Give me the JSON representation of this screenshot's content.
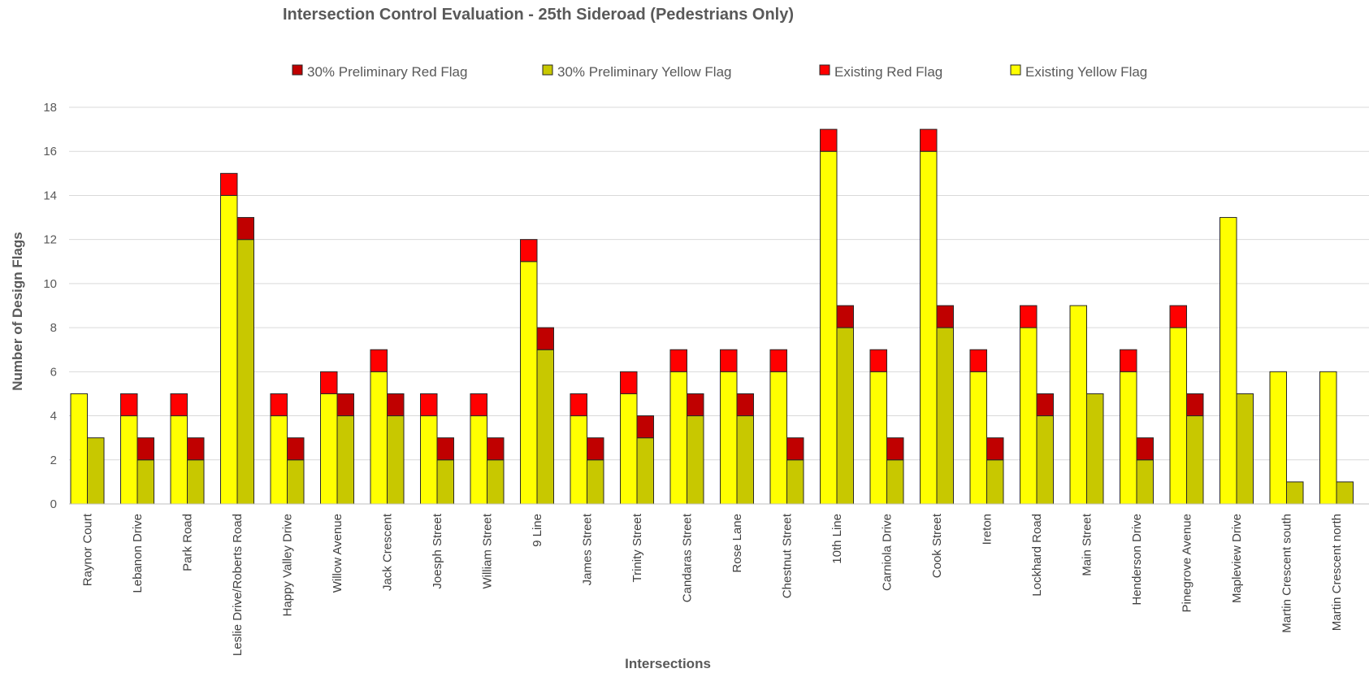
{
  "chart_data": {
    "type": "bar",
    "stacked": true,
    "title": "Intersection Control Evaluation - 25th Sideroad (Pedestrians Only)",
    "xlabel": "Intersections",
    "ylabel": "Number of Design Flags",
    "ylim": [
      0,
      18
    ],
    "yticks": [
      0,
      2,
      4,
      6,
      8,
      10,
      12,
      14,
      16,
      18
    ],
    "grid": true,
    "legend_position": "top",
    "categories": [
      "Raynor Court",
      "Lebanon Drive",
      "Park Road",
      "Leslie Drive/Roberts Road",
      "Happy Valley Drive",
      "Willow Avenue",
      "Jack Crescent",
      "Joesph Street",
      "William Street",
      "9 Line",
      "James Street",
      "Trinity Street",
      "Candaras Street",
      "Rose Lane",
      "Chestnut Street",
      "10th Line",
      "Carniola Drive",
      "Cook Street",
      "Ireton",
      "Lockhard Road",
      "Main Street",
      "Henderson Drive",
      "Pinegrove Avenue",
      "Mapleview Drive",
      "Martin Crescent south",
      "Martin Crescent north"
    ],
    "groups": [
      {
        "group": "Existing",
        "series": [
          {
            "name": "Existing Yellow Flag",
            "color": "#ffff00",
            "values": [
              5,
              4,
              4,
              14,
              4,
              5,
              6,
              4,
              4,
              11,
              4,
              5,
              6,
              6,
              6,
              16,
              6,
              16,
              6,
              8,
              9,
              6,
              8,
              13,
              6,
              6
            ]
          },
          {
            "name": "Existing Red Flag",
            "color": "#ff0000",
            "values": [
              0,
              1,
              1,
              1,
              1,
              1,
              1,
              1,
              1,
              1,
              1,
              1,
              1,
              1,
              1,
              1,
              1,
              1,
              1,
              1,
              0,
              1,
              1,
              0,
              0,
              0
            ]
          }
        ]
      },
      {
        "group": "30% Preliminary",
        "series": [
          {
            "name": "30% Preliminary Yellow Flag",
            "color": "#c8c800",
            "values": [
              3,
              2,
              2,
              12,
              2,
              4,
              4,
              2,
              2,
              7,
              2,
              3,
              4,
              4,
              2,
              8,
              2,
              8,
              2,
              4,
              5,
              2,
              4,
              5,
              1,
              1
            ]
          },
          {
            "name": "30% Preliminary Red Flag",
            "color": "#c00000",
            "values": [
              0,
              1,
              1,
              1,
              1,
              1,
              1,
              1,
              1,
              1,
              1,
              1,
              1,
              1,
              1,
              1,
              1,
              1,
              1,
              1,
              0,
              1,
              1,
              0,
              0,
              0
            ]
          }
        ]
      }
    ],
    "legend": [
      {
        "label": "30% Preliminary Red Flag",
        "color": "#c00000"
      },
      {
        "label": "30% Preliminary Yellow Flag",
        "color": "#c8c800"
      },
      {
        "label": "Existing Red Flag",
        "color": "#ff0000"
      },
      {
        "label": "Existing Yellow Flag",
        "color": "#ffff00"
      }
    ]
  }
}
